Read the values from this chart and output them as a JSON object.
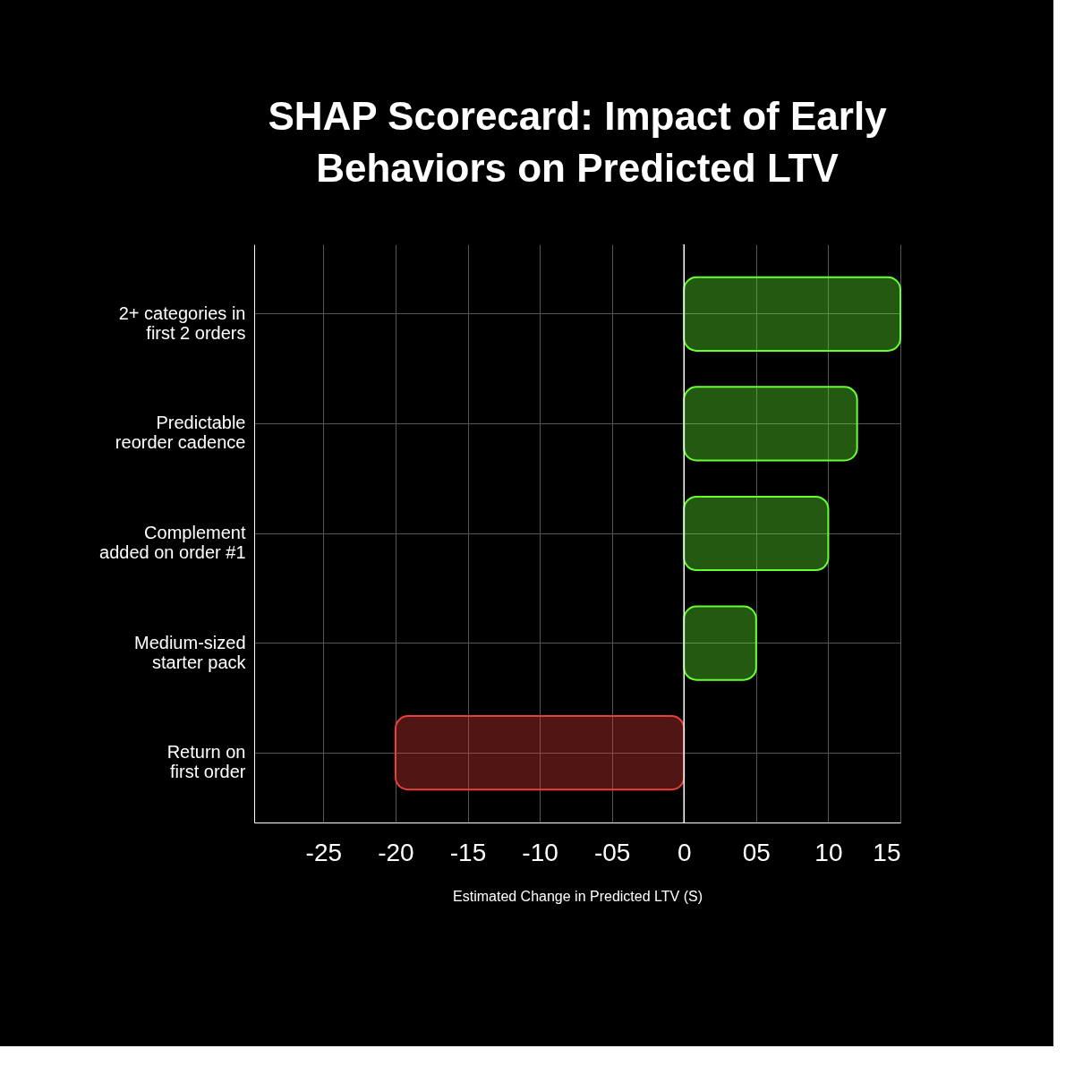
{
  "chart_data": {
    "type": "bar",
    "orientation": "horizontal",
    "title": "SHAP Scorecard: Impact of Early Behaviors on Predicted LTV",
    "xlabel": "Estimated Change in Predicted LTV (S)",
    "categories": [
      "2+ categories in\nfirst 2 orders",
      "Predictable\nreorder cadence",
      "Complement\nadded on order #1",
      "Medium-sized\nstarter pack",
      "Return on\nfirst order"
    ],
    "values": [
      15,
      12,
      10,
      5,
      -20
    ],
    "colors": [
      "#66ff33",
      "#66ff33",
      "#66ff33",
      "#66ff33",
      "#e8403a"
    ],
    "xlim": [
      -29.8,
      15
    ],
    "xticks": [
      -25,
      -20,
      -15,
      -10,
      {
        "value": -5,
        "label": "-05"
      },
      0,
      {
        "value": 5,
        "label": "05"
      },
      10,
      15
    ],
    "ref_lines": [
      {
        "axis": "x",
        "value": 0
      }
    ],
    "grid": true
  }
}
